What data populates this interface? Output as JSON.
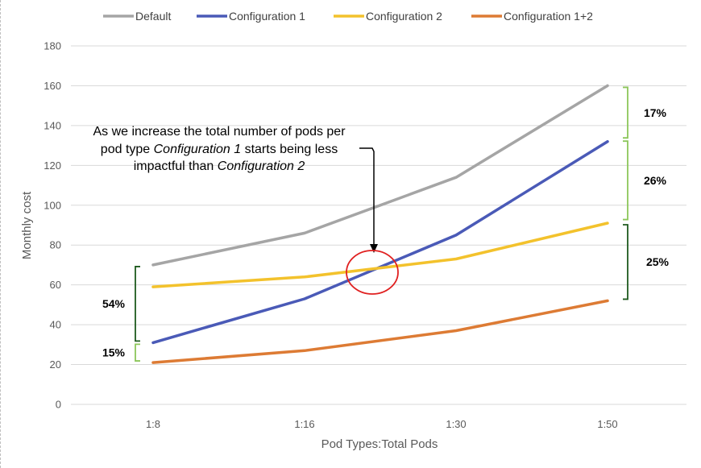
{
  "chart_data": {
    "type": "line",
    "title": "",
    "xlabel": "Pod Types:Total Pods",
    "ylabel": "Monthly cost",
    "categories": [
      "1:8",
      "1:16",
      "1:30",
      "1:50"
    ],
    "ylim": [
      0,
      180
    ],
    "yticks": [
      0,
      20,
      40,
      60,
      80,
      100,
      120,
      140,
      160,
      180
    ],
    "grid": true,
    "legend_position": "top",
    "series": [
      {
        "name": "Default",
        "color": "#a5a5a5",
        "values": [
          70,
          86,
          114,
          160
        ]
      },
      {
        "name": "Configuration 1",
        "color": "#4a5ab7",
        "values": [
          31,
          53,
          85,
          132
        ]
      },
      {
        "name": "Configuration 2",
        "color": "#f3c22c",
        "values": [
          59,
          64,
          73,
          91
        ]
      },
      {
        "name": "Configuration 1+2",
        "color": "#dd7b34",
        "values": [
          21,
          27,
          37,
          52
        ]
      }
    ],
    "annotations": {
      "note_line1": "As we increase the total number of pods per",
      "note_line2_prefix": "pod type ",
      "note_line2_em": "Configuration 1",
      "note_line2_suffix": " starts being less",
      "note_line3_prefix": "impactful than ",
      "note_line3_em": "Configuration 2",
      "left_gaps": [
        {
          "label": "54%",
          "from": 31,
          "to": 70,
          "color": "#1e5a1e"
        },
        {
          "label": "15%",
          "from": 21,
          "to": 31,
          "color": "#8cc65a"
        }
      ],
      "right_gaps": [
        {
          "label": "17%",
          "from": 133,
          "to": 160,
          "color": "#8cc65a"
        },
        {
          "label": "26%",
          "from": 92,
          "to": 133,
          "color": "#8cc65a"
        },
        {
          "label": "25%",
          "from": 52,
          "to": 91,
          "color": "#1e5a1e"
        }
      ],
      "circle_color": "#e02020"
    }
  }
}
